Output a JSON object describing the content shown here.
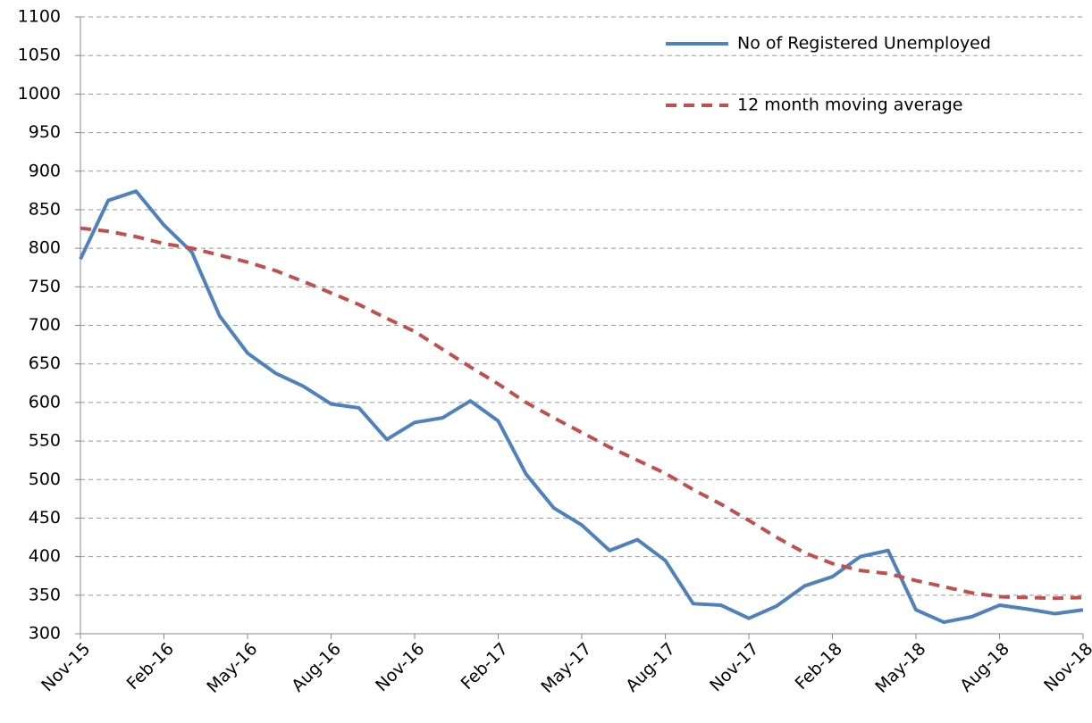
{
  "chart_data": {
    "type": "line",
    "categories": [
      "Nov-15",
      null,
      null,
      "Feb-16",
      null,
      null,
      "May-16",
      null,
      null,
      "Aug-16",
      null,
      null,
      "Nov-16",
      null,
      null,
      "Feb-17",
      null,
      null,
      "May-17",
      null,
      null,
      "Aug-17",
      null,
      null,
      "Nov-17",
      null,
      null,
      "Feb-18",
      null,
      null,
      "May-18",
      null,
      null,
      "Aug-18",
      null,
      null,
      "Nov-18"
    ],
    "series": [
      {
        "name": "No of Registered Unemployed",
        "color": "#4f81bd",
        "linestyle": "solid",
        "values": [
          786,
          862,
          874,
          830,
          795,
          712,
          664,
          638,
          621,
          598,
          593,
          552,
          574,
          580,
          602,
          576,
          507,
          463,
          441,
          408,
          422,
          395,
          339,
          337,
          320,
          336,
          362,
          374,
          400,
          408,
          331,
          315,
          322,
          337,
          332,
          326,
          331
        ]
      },
      {
        "name": "12 month moving average",
        "color": "#c0504d",
        "linestyle": "dashed",
        "values": [
          826,
          822,
          815,
          806,
          800,
          791,
          782,
          771,
          757,
          742,
          727,
          709,
          692,
          669,
          646,
          624,
          600,
          580,
          561,
          542,
          525,
          508,
          487,
          468,
          447,
          425,
          405,
          391,
          382,
          378,
          369,
          361,
          353,
          348,
          347,
          346,
          347
        ]
      }
    ],
    "ylim": [
      300,
      1100
    ],
    "yticks": [
      300,
      350,
      400,
      450,
      500,
      550,
      600,
      650,
      700,
      750,
      800,
      850,
      900,
      950,
      1000,
      1050,
      1100
    ],
    "grid": true,
    "legend": "upper right"
  }
}
